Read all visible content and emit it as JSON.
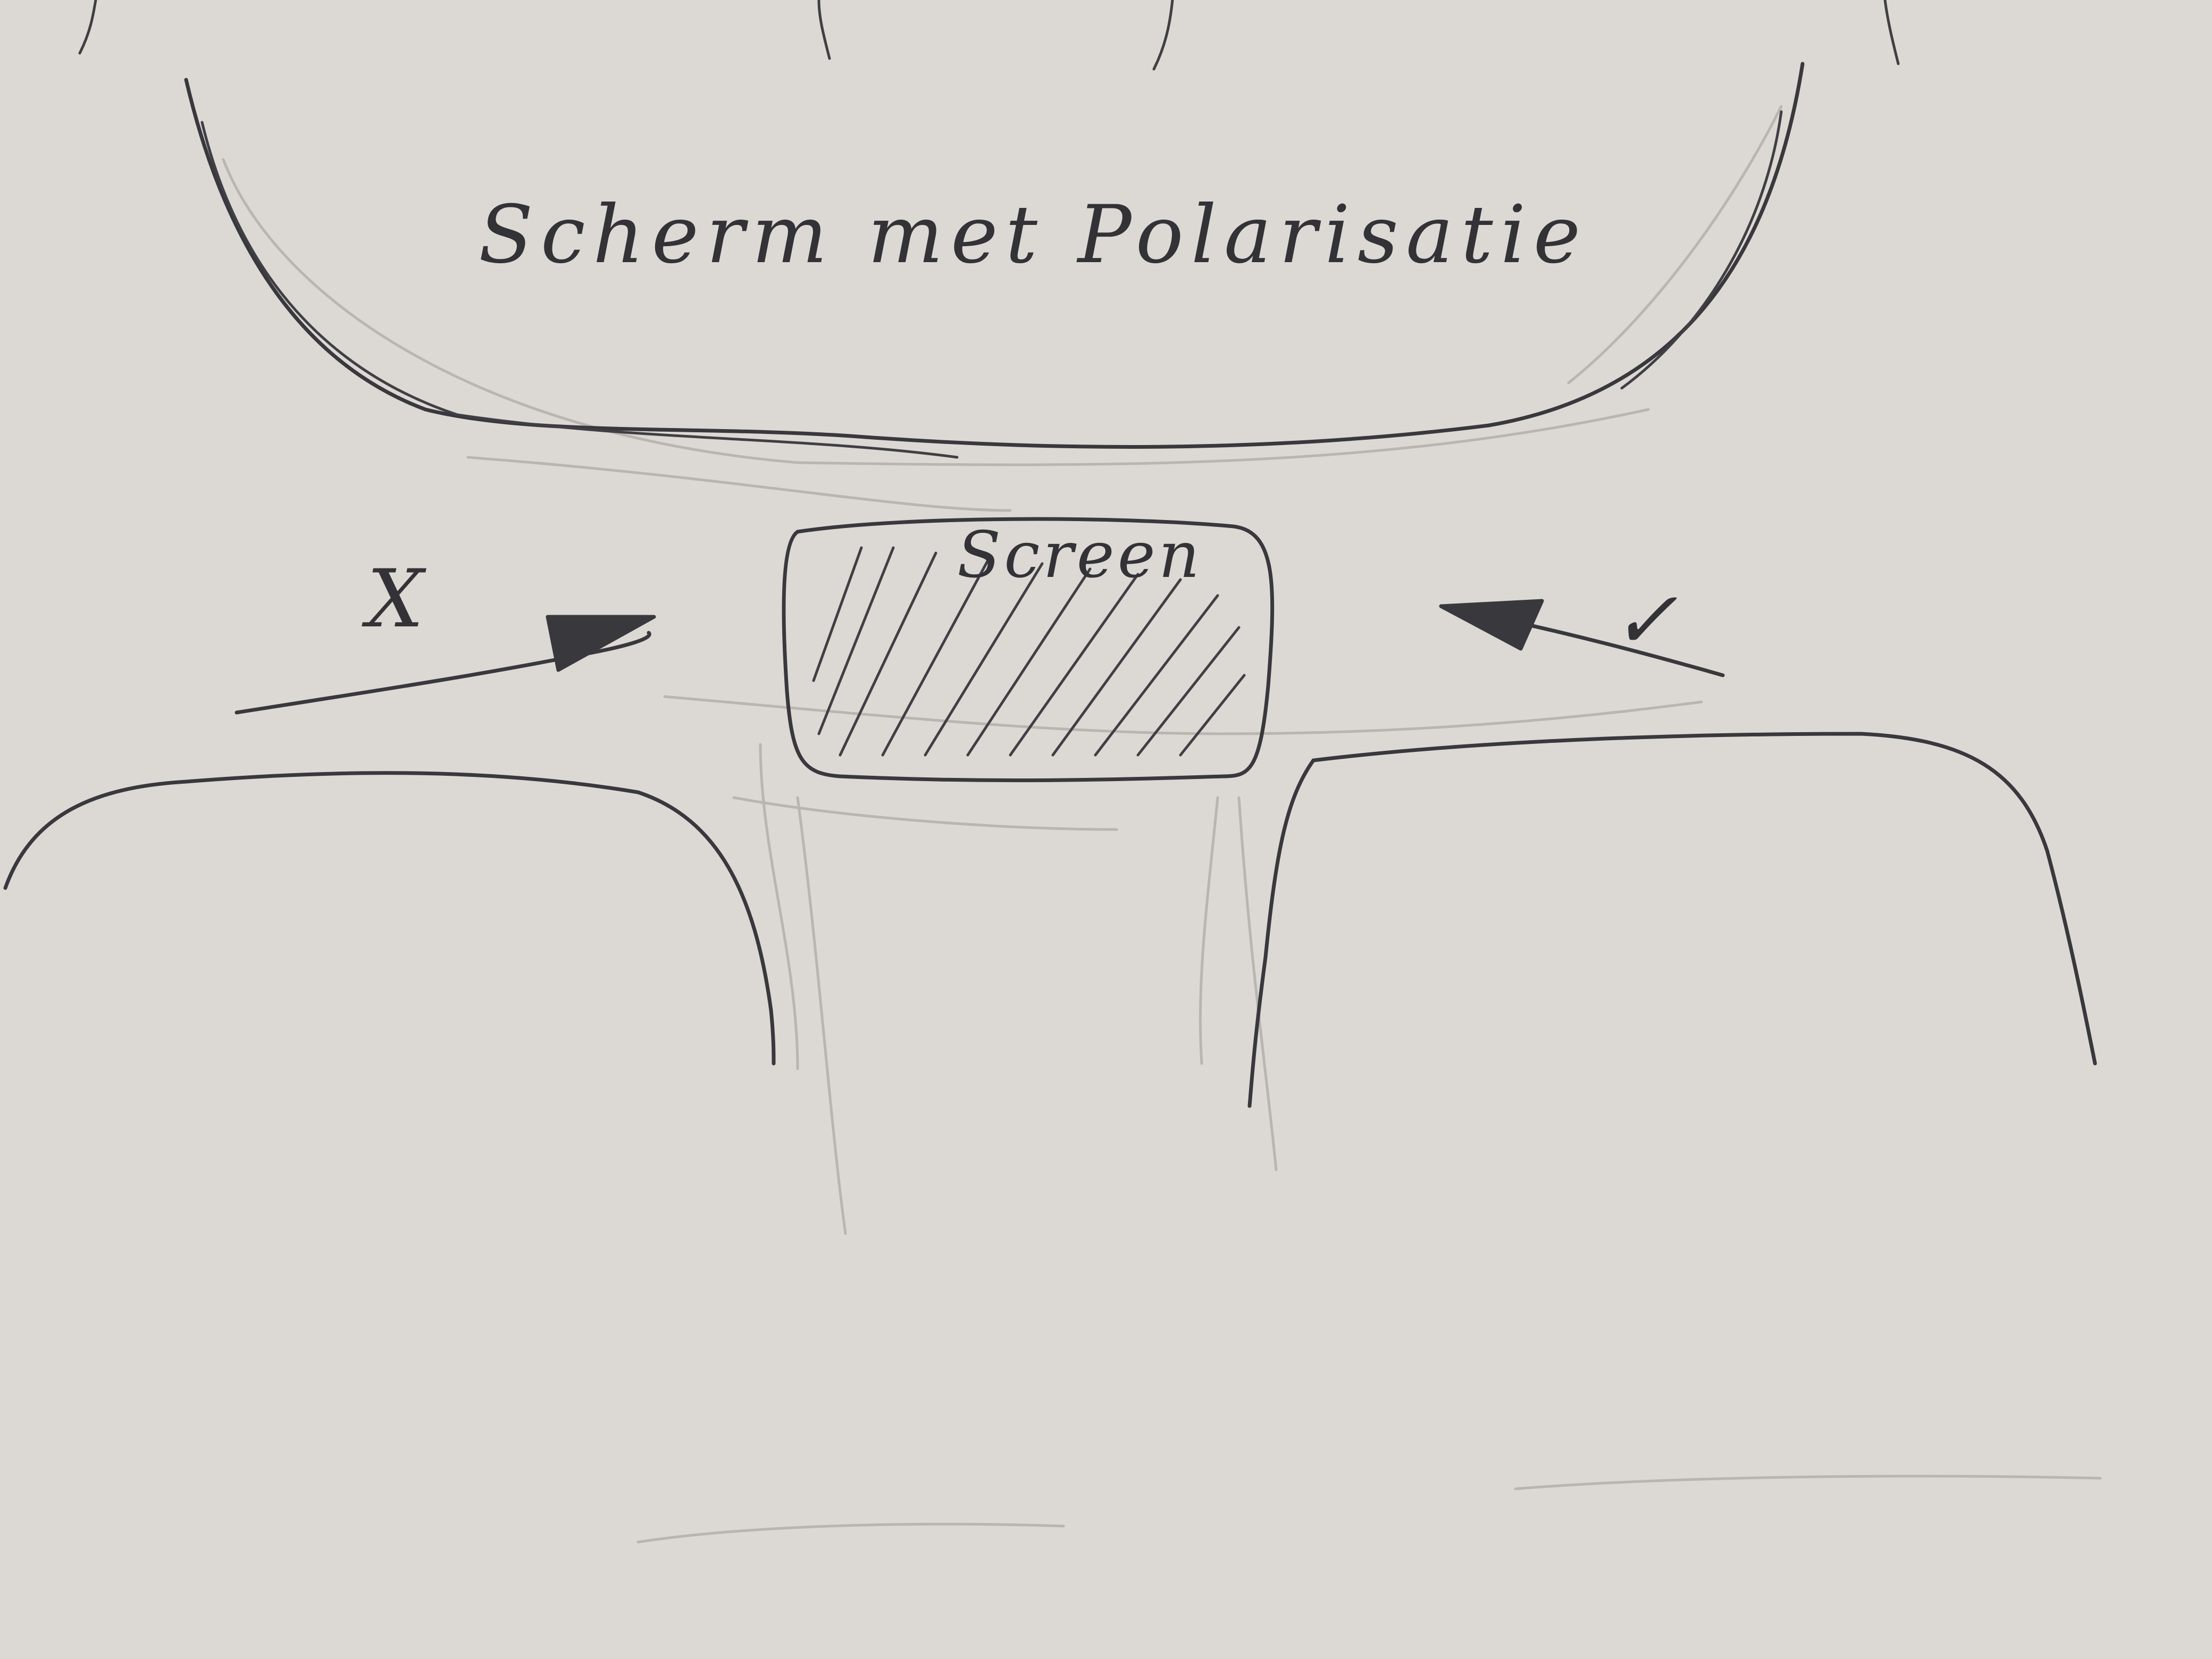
{
  "labels": {
    "polarised_screen": "Scherm met Polarisatie",
    "screen": "Screen",
    "left_marker": "X",
    "right_marker": "✓"
  },
  "colors": {
    "paper": "#dcd9d4",
    "ink": "#38383d",
    "pencil": "#b9b6b1"
  }
}
